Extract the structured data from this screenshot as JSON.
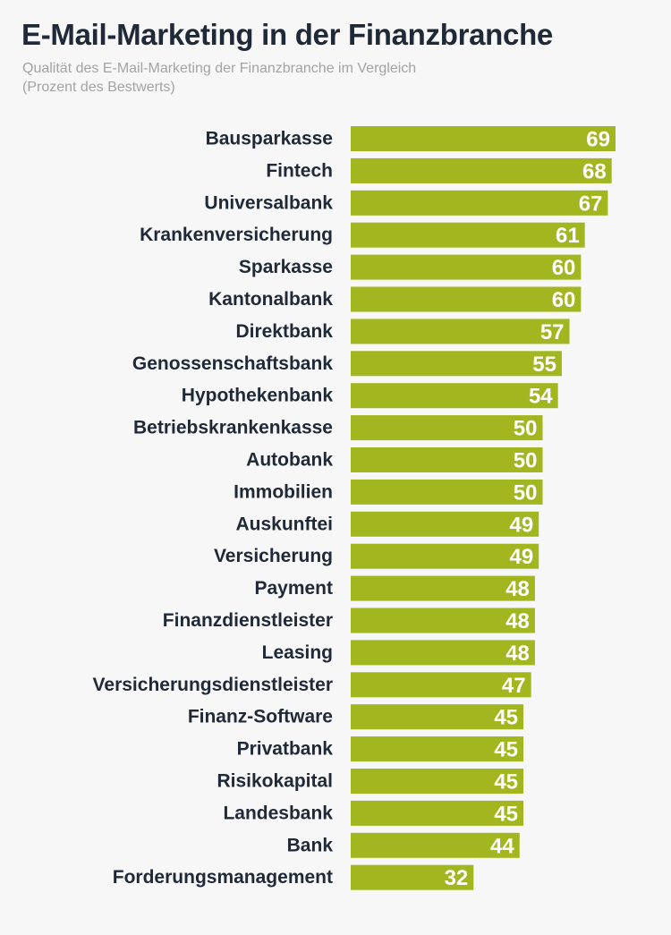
{
  "chart_data": {
    "type": "bar",
    "orientation": "horizontal",
    "title": "E-Mail-Marketing in der Finanzbranche",
    "subtitle_lines": [
      "Qualität des E-Mail-Marketing der Finanzbranche im Vergleich",
      "(Prozent des Bestwerts)"
    ],
    "categories": [
      "Bausparkasse",
      "Fintech",
      "Universalbank",
      "Krankenversicherung",
      "Sparkasse",
      "Kantonalbank",
      "Direktbank",
      "Genossenschaftsbank",
      "Hypothekenbank",
      "Betriebskrankenkasse",
      "Autobank",
      "Immobilien",
      "Auskunftei",
      "Versicherung",
      "Payment",
      "Finanzdienstleister",
      "Leasing",
      "Versicherungsdienstleister",
      "Finanz-Software",
      "Privatbank",
      "Risikokapital",
      "Landesbank",
      "Bank",
      "Forderungsmanagement"
    ],
    "values": [
      69,
      68,
      67,
      61,
      60,
      60,
      57,
      55,
      54,
      50,
      50,
      50,
      49,
      49,
      48,
      48,
      48,
      47,
      45,
      45,
      45,
      45,
      44,
      32
    ],
    "xlim": [
      0,
      69
    ],
    "value_labels": true,
    "grid": false,
    "axes_visible": false,
    "colors": {
      "bar": "#a2b61f",
      "value_label": "#ffffff",
      "category_label": "#1f2937",
      "title": "#1f2937",
      "subtitle": "#a3a3a3",
      "background": "#f7f7f7"
    }
  }
}
